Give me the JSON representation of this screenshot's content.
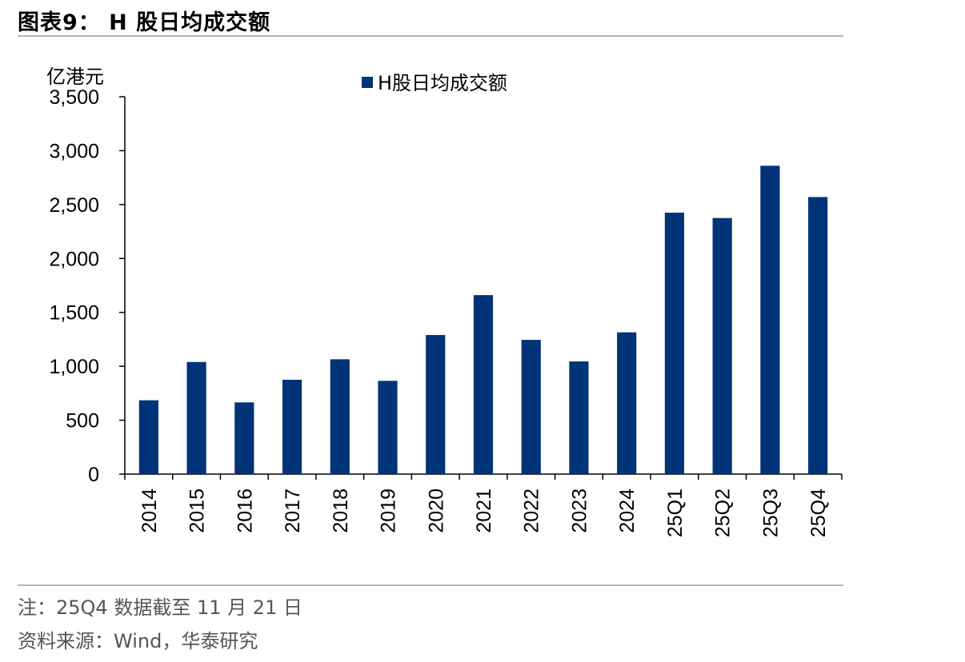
{
  "figure": {
    "title": "图表9： H 股日均成交额",
    "note": "注：25Q4 数据截至 11 月 21 日",
    "source": "资料来源：Wind，华泰研究"
  },
  "chart_data": {
    "type": "bar",
    "title": "",
    "ylabel": "亿港元",
    "xlabel": "",
    "categories": [
      "2014",
      "2015",
      "2016",
      "2017",
      "2018",
      "2019",
      "2020",
      "2021",
      "2022",
      "2023",
      "2024",
      "25Q1",
      "25Q2",
      "25Q3",
      "25Q4"
    ],
    "series": [
      {
        "name": "H股日均成交额",
        "values": [
          685,
          1040,
          665,
          875,
          1065,
          865,
          1290,
          1660,
          1245,
          1045,
          1315,
          2425,
          2375,
          2860,
          2570
        ]
      }
    ],
    "yticks": [
      "0",
      "500",
      "1,000",
      "1,500",
      "2,000",
      "2,500",
      "3,000",
      "3,500"
    ],
    "ylim": [
      0,
      3500
    ],
    "grid": false,
    "legend": "top-center",
    "colors": {
      "bar": "#003378",
      "axis": "#000000",
      "rule": "#a7b6c8"
    }
  }
}
